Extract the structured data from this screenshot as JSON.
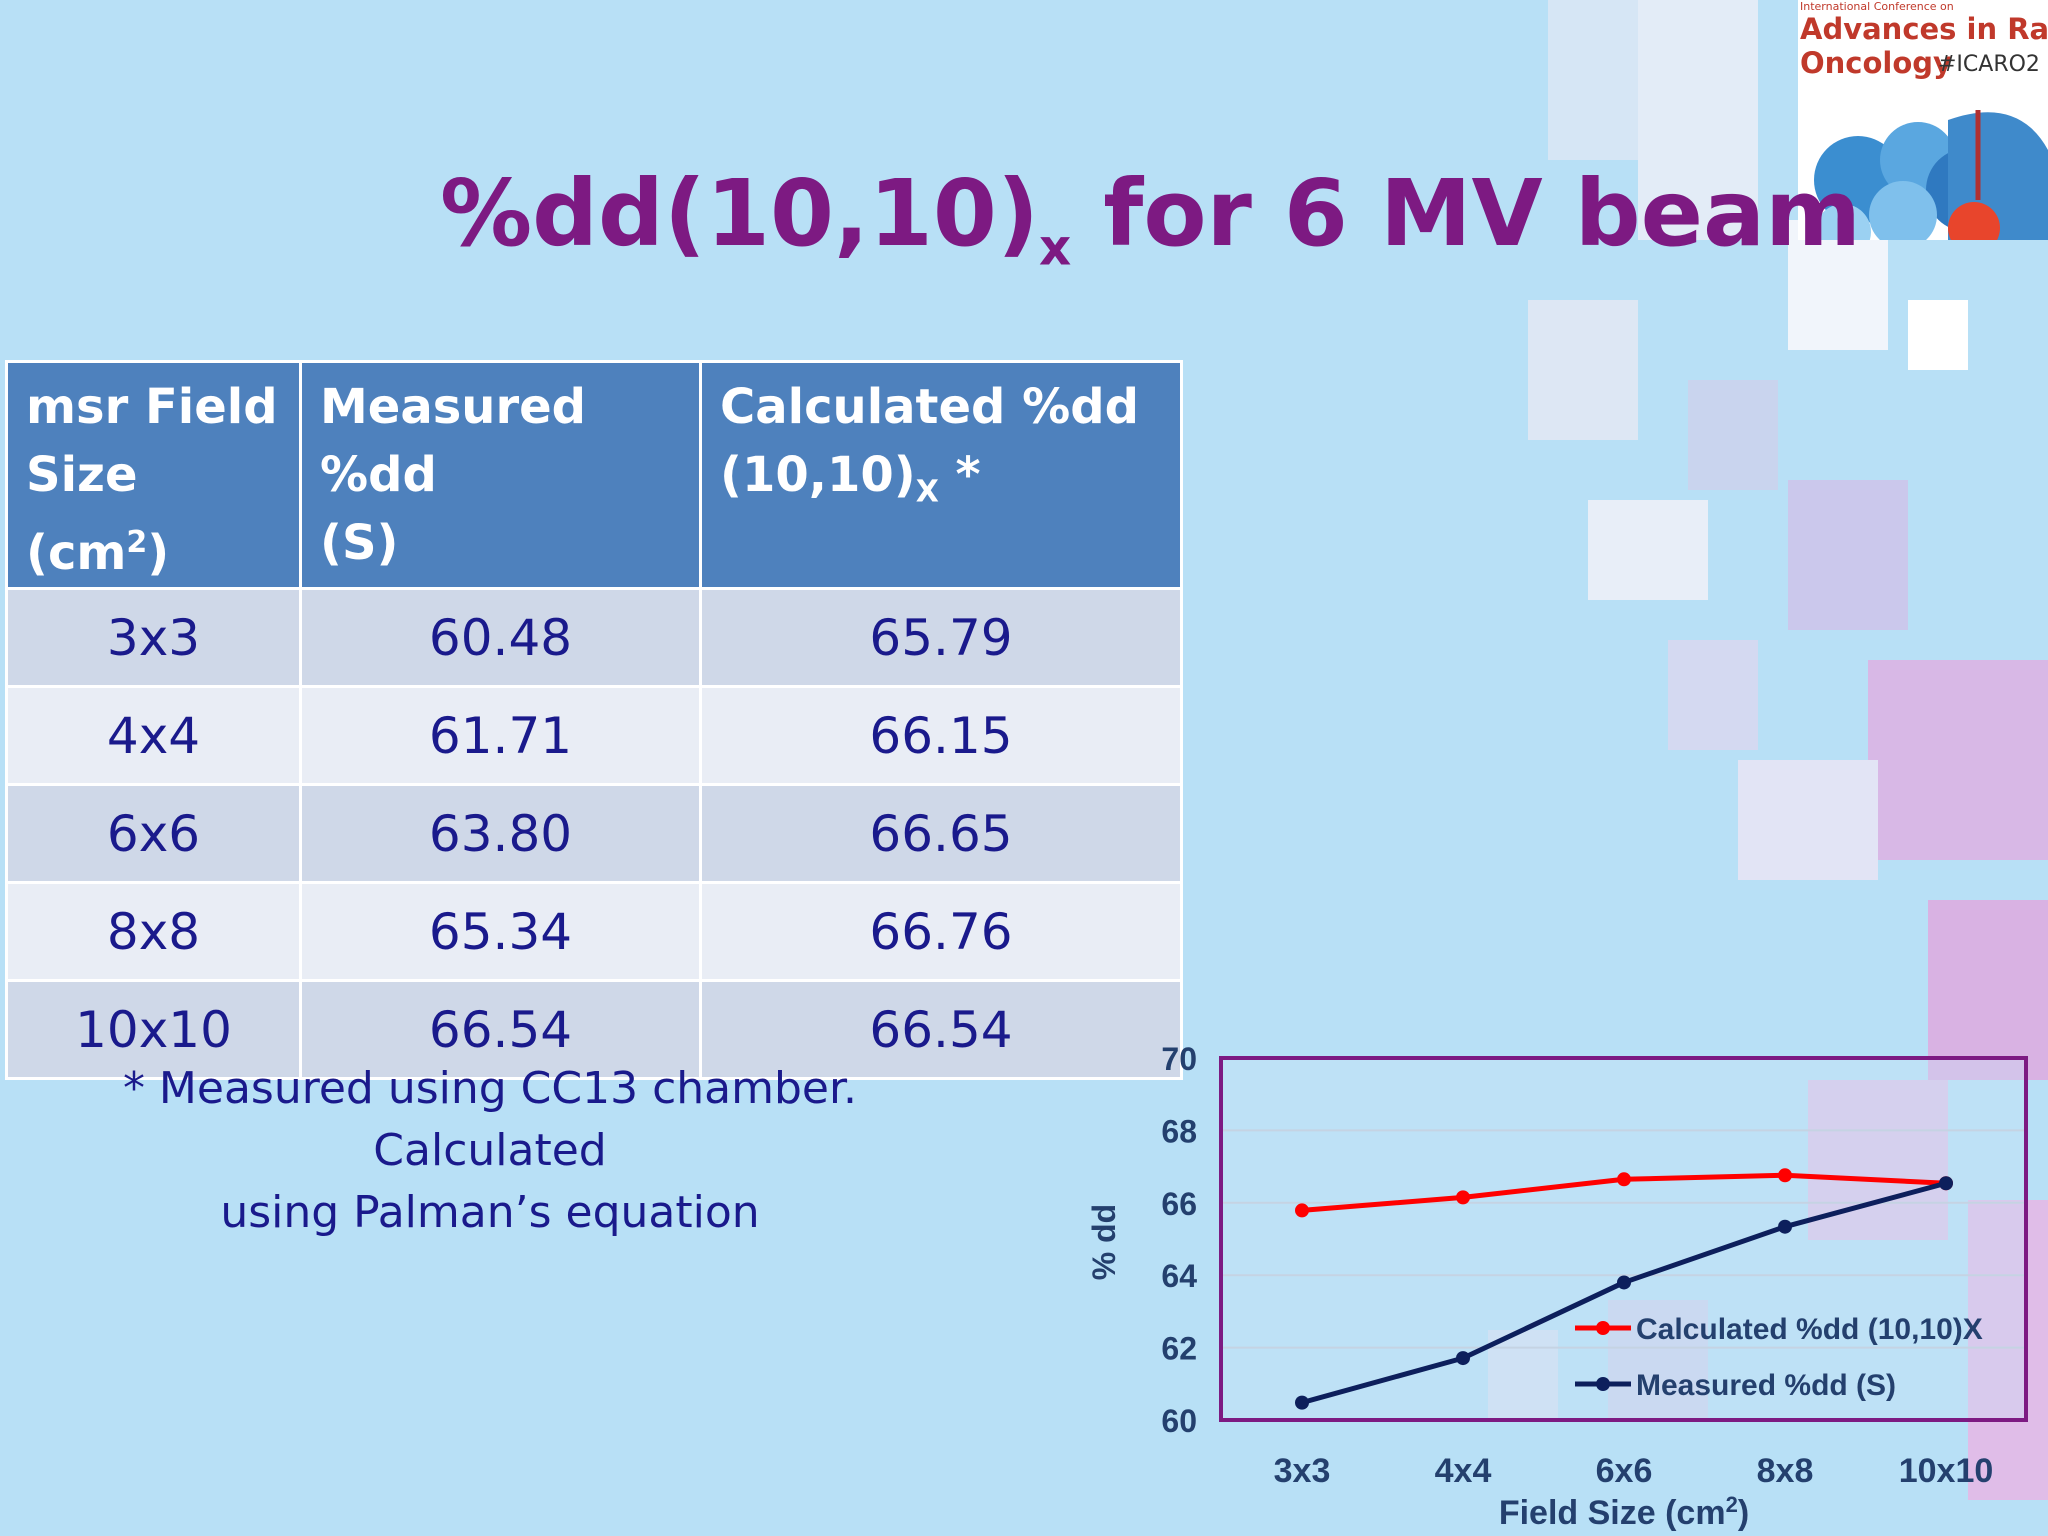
{
  "slide": {
    "title_main": "%dd(10,10)",
    "title_sub": "x",
    "title_rest": " for 6 MV beam"
  },
  "logo": {
    "small": "International Conference on",
    "title": "Advances in Radiation",
    "sub": "Oncology",
    "tag": "#ICARO2"
  },
  "table": {
    "headers": [
      {
        "line1": "msr Field",
        "line2": "Size (cm",
        "sup": "2",
        "tail": ")"
      },
      {
        "line1": "Measured %dd",
        "line2": "(S)"
      },
      {
        "line1": "Calculated %dd",
        "line2": "(10,10)",
        "sub": "X",
        "tail": " *"
      }
    ],
    "rows": [
      [
        "3x3",
        "60.48",
        "65.79"
      ],
      [
        "4x4",
        "61.71",
        "66.15"
      ],
      [
        "6x6",
        "63.80",
        "66.65"
      ],
      [
        "8x8",
        "65.34",
        "66.76"
      ],
      [
        "10x10",
        "66.54",
        "66.54"
      ]
    ]
  },
  "note": {
    "line1": "* Measured using CC13 chamber. Calculated",
    "line2": "using Palman’s equation"
  },
  "colors": {
    "title": "#7d1a82",
    "header_bg": "#4e81bd",
    "calculated": "#ff0000",
    "measured": "#0d1f5c",
    "plot_border": "#7d1a82"
  },
  "chart_data": {
    "type": "line",
    "categories": [
      "3x3",
      "4x4",
      "6x6",
      "8x8",
      "10x10"
    ],
    "series": [
      {
        "name": "Calculated %dd (10,10)X",
        "values": [
          65.79,
          66.15,
          66.65,
          66.76,
          66.54
        ],
        "color": "#ff0000"
      },
      {
        "name": "Measured %dd (S)",
        "values": [
          60.48,
          61.71,
          63.8,
          65.34,
          66.54
        ],
        "color": "#0d1f5c"
      }
    ],
    "xlabel": "Field Size (cm",
    "xlabel_sup": "2",
    "xlabel_tail": ")",
    "ylabel": "% dd",
    "ylim": [
      60,
      70
    ],
    "yticks": [
      "60",
      "62",
      "64",
      "66",
      "68",
      "70"
    ],
    "grid": true,
    "legend": "bottom-right"
  }
}
